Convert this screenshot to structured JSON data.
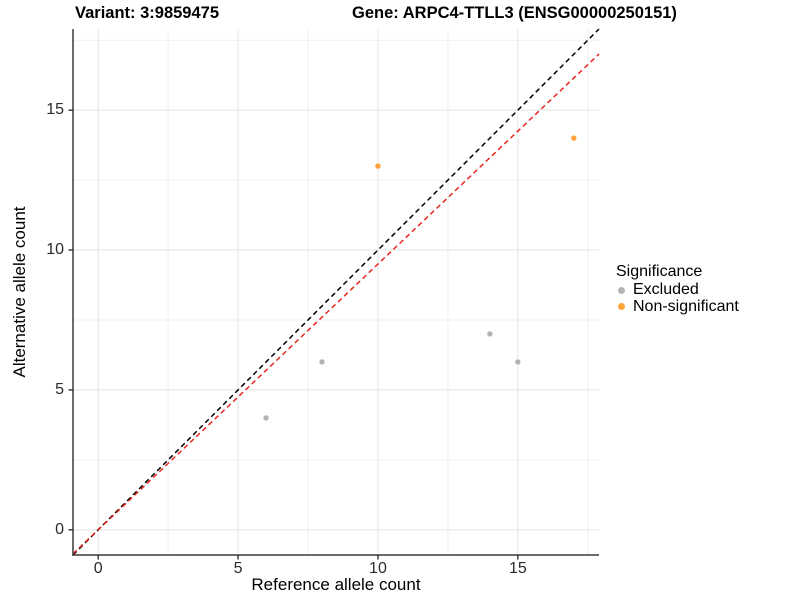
{
  "chart_data": {
    "type": "scatter",
    "titles": {
      "left": "Variant: 3:9859475",
      "right": "Gene: ARPC4-TTLL3 (ENSG00000250151)"
    },
    "xlabel": "Reference allele count",
    "ylabel": "Alternative allele count",
    "xlim": [
      -0.9,
      17.9
    ],
    "ylim": [
      -0.9,
      17.9
    ],
    "major_ticks": [
      0,
      5,
      10,
      15
    ],
    "minor_ticks": [
      2.5,
      7.5,
      12.5,
      17.5
    ],
    "grid": "on",
    "series": [
      {
        "name": "Excluded",
        "color": "#B4B4B4",
        "points": [
          [
            6,
            4
          ],
          [
            8,
            6
          ],
          [
            14,
            7
          ],
          [
            15,
            6
          ]
        ]
      },
      {
        "name": "Non-significant",
        "color": "#FAA43A",
        "points": [
          [
            10,
            13
          ],
          [
            17,
            14
          ]
        ]
      }
    ],
    "reference_lines": [
      {
        "name": "identity",
        "slope": 1.0,
        "intercept": 0,
        "color": "#000000",
        "style": "dashed"
      },
      {
        "name": "expected-ratio",
        "slope": 0.95,
        "intercept": 0,
        "color": "#E8251F",
        "style": "dashed"
      }
    ],
    "legend": {
      "title": "Significance",
      "position": "right",
      "entries": [
        {
          "label": "Excluded",
          "color": "#B4B4B4"
        },
        {
          "label": "Non-significant",
          "color": "#FAA43A"
        }
      ]
    },
    "colors": {
      "background": "#FFFFFF",
      "grid_major": "#E3E3E3",
      "grid_minor": "#F0F0F0",
      "axis_line": "#3A3A3A",
      "tick_mark": "#222222",
      "tick_label": "#2B2B2B"
    }
  }
}
